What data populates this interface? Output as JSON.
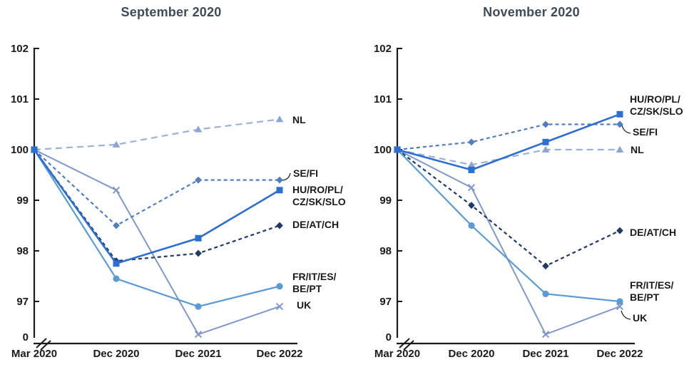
{
  "figure": {
    "background": "#ffffff",
    "text_color": "#1a1a1a",
    "title_color": "#3e4c5a"
  },
  "chart_data": [
    {
      "type": "line",
      "title": "September 2020",
      "x_categories": [
        "Mar 2020",
        "Dec 2020",
        "Dec 2021",
        "Dec 2022"
      ],
      "y_tick_labels": [
        "102",
        "101",
        "100",
        "99",
        "98",
        "97"
      ],
      "y_axis_break_label": "0",
      "ylim": [
        97,
        102
      ],
      "grid": false,
      "legend": "direct-labels-right-of-lines",
      "series": [
        {
          "name": "NL",
          "label_lines": [
            "NL"
          ],
          "values": [
            100,
            100.1,
            100.4,
            100.6
          ],
          "color": "#9cb1da",
          "marker_fill": "#8ba5d4",
          "line_style": "long-dash",
          "marker": "triangle"
        },
        {
          "name": "UK",
          "label_lines": [
            "UK"
          ],
          "values": [
            100,
            99.2,
            96.35,
            96.9
          ],
          "color": "#7e98cd",
          "marker_fill": "#7e98cd",
          "line_style": "solid",
          "marker": "x"
        },
        {
          "name": "SE/FI",
          "label_lines": [
            "SE/FI"
          ],
          "values": [
            100,
            98.5,
            99.4,
            99.4
          ],
          "color": "#4f7dc4",
          "marker_fill": "#4f7dc4",
          "line_style": "dash",
          "marker": "diamond"
        },
        {
          "name": "DE/AT/CH",
          "label_lines": [
            "DE/AT/CH"
          ],
          "values": [
            100,
            97.8,
            97.95,
            98.5
          ],
          "color": "#203a66",
          "marker_fill": "#203a66",
          "line_style": "dash",
          "marker": "diamond"
        },
        {
          "name": "FR/IT/ES/BE/PT",
          "label_lines": [
            "FR/IT/ES/",
            "BE/PT"
          ],
          "values": [
            100,
            97.45,
            96.9,
            97.3
          ],
          "color": "#5b9bd5",
          "marker_fill": "#5b9bd5",
          "line_style": "solid",
          "marker": "circle"
        },
        {
          "name": "HU/RO/PL/CZ/SK/SLO",
          "label_lines": [
            "HU/RO/PL/",
            "CZ/SK/SLO"
          ],
          "values": [
            100,
            97.75,
            98.25,
            99.2
          ],
          "color": "#2b6fd3",
          "marker_fill": "#2b6fd3",
          "line_style": "solid",
          "marker": "square"
        }
      ]
    },
    {
      "type": "line",
      "title": "November 2020",
      "x_categories": [
        "Mar 2020",
        "Dec 2020",
        "Dec 2021",
        "Dec 2022"
      ],
      "y_tick_labels": [
        "102",
        "101",
        "100",
        "99",
        "98",
        "97"
      ],
      "y_axis_break_label": "0",
      "ylim": [
        97,
        102
      ],
      "grid": false,
      "legend": "direct-labels-right-of-lines",
      "series": [
        {
          "name": "NL",
          "label_lines": [
            "NL"
          ],
          "values": [
            100,
            99.7,
            100.0,
            100.0
          ],
          "color": "#9cb1da",
          "marker_fill": "#8ba5d4",
          "line_style": "long-dash",
          "marker": "triangle"
        },
        {
          "name": "UK",
          "label_lines": [
            "UK"
          ],
          "values": [
            100,
            99.25,
            96.35,
            96.9
          ],
          "color": "#7e98cd",
          "marker_fill": "#7e98cd",
          "line_style": "solid",
          "marker": "x"
        },
        {
          "name": "SE/FI",
          "label_lines": [
            "SE/FI"
          ],
          "values": [
            100,
            100.15,
            100.5,
            100.5
          ],
          "color": "#4f7dc4",
          "marker_fill": "#4f7dc4",
          "line_style": "dash",
          "marker": "diamond"
        },
        {
          "name": "DE/AT/CH",
          "label_lines": [
            "DE/AT/CH"
          ],
          "values": [
            100,
            98.9,
            97.7,
            98.4
          ],
          "color": "#203a66",
          "marker_fill": "#203a66",
          "line_style": "dash",
          "marker": "diamond"
        },
        {
          "name": "FR/IT/ES/BE/PT",
          "label_lines": [
            "FR/IT/ES/",
            "BE/PT"
          ],
          "values": [
            100,
            98.5,
            97.15,
            97.0
          ],
          "color": "#5b9bd5",
          "marker_fill": "#5b9bd5",
          "line_style": "solid",
          "marker": "circle"
        },
        {
          "name": "HU/RO/PL/CZ/SK/SLO",
          "label_lines": [
            "HU/RO/PL/",
            "CZ/SK/SLO"
          ],
          "values": [
            100,
            99.6,
            100.15,
            100.7
          ],
          "color": "#2b6fd3",
          "marker_fill": "#2b6fd3",
          "line_style": "solid",
          "marker": "square"
        }
      ]
    }
  ]
}
